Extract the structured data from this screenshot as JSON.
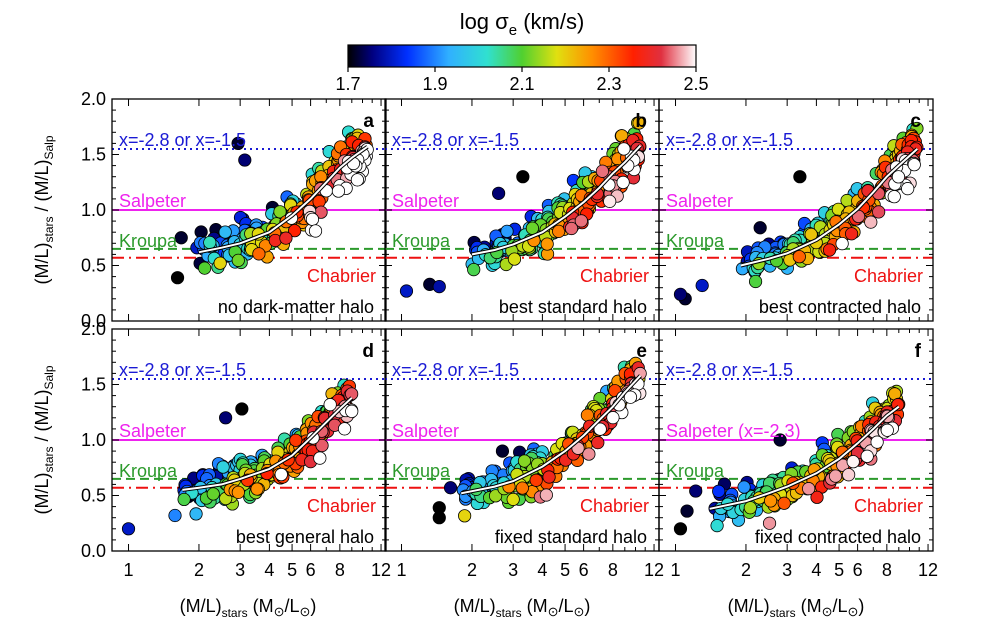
{
  "colorbar": {
    "title_main": "log σ",
    "title_sub": "e",
    "title_unit": " (km/s)",
    "ticks": [
      "1.7",
      "1.9",
      "2.1",
      "2.3",
      "2.5"
    ],
    "tick_values": [
      1.7,
      1.9,
      2.1,
      2.3,
      2.5
    ],
    "range": [
      1.7,
      2.5
    ]
  },
  "axes": {
    "x_label_main": "(M/L)",
    "x_label_sub": "stars",
    "x_label_unit": " (M",
    "x_label_sun": "⊙",
    "x_label_mid": "/L",
    "x_label_end": ")",
    "y_label_main": "(M/L)",
    "y_label_sub": "stars",
    "y_label_mid": " / (M/L)",
    "y_label_sub2": "Salp",
    "x_ticks_text": [
      "1",
      "2",
      "3",
      "4",
      "5",
      "6",
      "8",
      "12"
    ],
    "x_ticks_val": [
      1,
      2,
      3,
      4,
      5,
      6,
      8,
      12
    ],
    "x_minor_val": [
      7,
      9,
      10,
      11
    ],
    "y_ticks_text": [
      "0.0",
      "0.5",
      "1.0",
      "1.5",
      "2.0"
    ],
    "y_ticks_val": [
      0.0,
      0.5,
      1.0,
      1.5,
      2.0
    ],
    "x_scale": "log",
    "xlim": [
      0.85,
      12.6
    ],
    "ylim": [
      0.0,
      2.0
    ]
  },
  "reference_lines": {
    "x_label": "x=-2.8 or x=-1.5",
    "x_value": 1.55,
    "salpeter_label": "Salpeter",
    "salpeter_value": 1.0,
    "kroupa_label": "Kroupa",
    "kroupa_value": 0.65,
    "chabrier_label": "Chabrier",
    "chabrier_value": 0.57
  },
  "colors": {
    "x_line": "#1a1ad4",
    "salpeter": "#ee22ee",
    "kroupa": "#2c9a2c",
    "chabrier": "#ee1111"
  },
  "chart_data": [
    {
      "type": "scatter",
      "letter": "a",
      "label": "no dark-matter halo",
      "salpeter_label": "Salpeter",
      "curve": [
        [
          2.0,
          0.62
        ],
        [
          2.5,
          0.66
        ],
        [
          3.0,
          0.7
        ],
        [
          4.0,
          0.8
        ],
        [
          5.0,
          0.95
        ],
        [
          6.0,
          1.1
        ],
        [
          7.0,
          1.25
        ],
        [
          8.0,
          1.38
        ],
        [
          9.0,
          1.47
        ],
        [
          10.5,
          1.57
        ]
      ],
      "outliers": [
        [
          2.94,
          1.6,
          1.72
        ],
        [
          3.14,
          1.45,
          1.75
        ],
        [
          1.68,
          0.75,
          1.72
        ],
        [
          1.62,
          0.39,
          1.7
        ],
        [
          1.96,
          0.66,
          1.8
        ],
        [
          2.12,
          0.7,
          1.9
        ]
      ]
    },
    {
      "type": "scatter",
      "letter": "b",
      "label": "best standard halo",
      "salpeter_label": "Salpeter",
      "curve": [
        [
          2.0,
          0.6
        ],
        [
          2.5,
          0.64
        ],
        [
          3.0,
          0.69
        ],
        [
          4.0,
          0.8
        ],
        [
          5.0,
          0.94
        ],
        [
          6.0,
          1.07
        ],
        [
          7.0,
          1.2
        ],
        [
          8.0,
          1.33
        ],
        [
          9.0,
          1.43
        ],
        [
          10.5,
          1.58
        ]
      ],
      "outliers": [
        [
          3.3,
          1.3,
          1.7
        ],
        [
          2.6,
          1.15,
          1.75
        ],
        [
          1.05,
          0.27,
          1.8
        ],
        [
          1.32,
          0.33,
          1.72
        ],
        [
          1.45,
          0.31,
          1.78
        ]
      ]
    },
    {
      "type": "scatter",
      "letter": "c",
      "label": "best contracted halo",
      "salpeter_label": "Salpeter",
      "curve": [
        [
          1.9,
          0.5
        ],
        [
          2.5,
          0.56
        ],
        [
          3.0,
          0.61
        ],
        [
          4.0,
          0.73
        ],
        [
          5.0,
          0.87
        ],
        [
          6.0,
          1.01
        ],
        [
          7.0,
          1.16
        ],
        [
          8.0,
          1.3
        ],
        [
          9.0,
          1.4
        ],
        [
          10.8,
          1.55
        ]
      ],
      "outliers": [
        [
          3.4,
          1.3,
          1.7
        ],
        [
          2.3,
          0.84,
          1.72
        ],
        [
          1.05,
          0.24,
          1.75
        ],
        [
          1.1,
          0.2,
          1.72
        ],
        [
          1.3,
          0.32,
          1.8
        ]
      ]
    },
    {
      "type": "scatter",
      "letter": "d",
      "label": "best general halo",
      "salpeter_label": "Salpeter",
      "curve": [
        [
          1.7,
          0.55
        ],
        [
          2.0,
          0.57
        ],
        [
          2.5,
          0.6
        ],
        [
          3.0,
          0.65
        ],
        [
          4.0,
          0.74
        ],
        [
          5.0,
          0.86
        ],
        [
          6.0,
          1.02
        ],
        [
          7.0,
          1.16
        ],
        [
          8.0,
          1.28
        ],
        [
          9.0,
          1.38
        ]
      ],
      "outliers": [
        [
          3.05,
          1.28,
          1.7
        ],
        [
          2.6,
          1.2,
          1.75
        ],
        [
          1.0,
          0.2,
          1.8
        ],
        [
          1.58,
          0.32,
          1.9
        ]
      ]
    },
    {
      "type": "scatter",
      "letter": "e",
      "label": "fixed standard halo",
      "salpeter_label": "Salpeter",
      "curve": [
        [
          1.8,
          0.52
        ],
        [
          2.5,
          0.58
        ],
        [
          3.0,
          0.63
        ],
        [
          4.0,
          0.76
        ],
        [
          5.0,
          0.9
        ],
        [
          6.0,
          1.04
        ],
        [
          7.0,
          1.18
        ],
        [
          8.0,
          1.3
        ],
        [
          9.0,
          1.43
        ],
        [
          10.5,
          1.58
        ]
      ],
      "outliers": [
        [
          2.7,
          0.9,
          1.72
        ],
        [
          1.45,
          0.39,
          1.7
        ],
        [
          1.45,
          0.3,
          1.7
        ],
        [
          1.62,
          0.57,
          1.75
        ]
      ]
    },
    {
      "type": "scatter",
      "letter": "f",
      "label": "fixed contracted halo",
      "salpeter_label": "Salpeter (x=-2.3)",
      "curve": [
        [
          1.4,
          0.38
        ],
        [
          2.0,
          0.45
        ],
        [
          2.5,
          0.52
        ],
        [
          3.0,
          0.58
        ],
        [
          4.0,
          0.7
        ],
        [
          5.0,
          0.83
        ],
        [
          6.0,
          0.97
        ],
        [
          7.0,
          1.1
        ],
        [
          8.0,
          1.22
        ],
        [
          9.0,
          1.3
        ]
      ],
      "outliers": [
        [
          1.05,
          0.2,
          1.7
        ],
        [
          1.12,
          0.36,
          1.72
        ],
        [
          1.22,
          0.54,
          1.75
        ],
        [
          2.8,
          1.0,
          1.72
        ]
      ]
    }
  ]
}
